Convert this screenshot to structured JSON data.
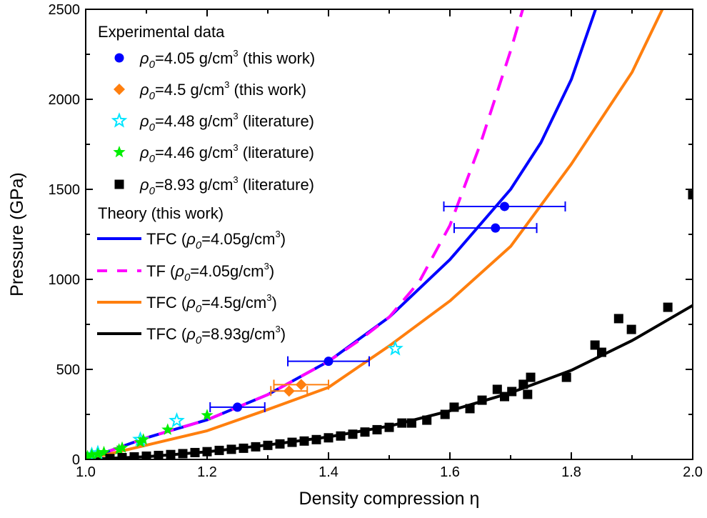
{
  "chart_data": {
    "type": "scatter",
    "title": "",
    "xlabel": "Density compression η",
    "ylabel": "Pressure (GPa)",
    "xlim": [
      1.0,
      2.0
    ],
    "ylim": [
      0,
      2500
    ],
    "xticks": [
      "1.0",
      "1.2",
      "1.4",
      "1.6",
      "1.8",
      "2.0"
    ],
    "yticks": [
      "0",
      "500",
      "1000",
      "1500",
      "2000",
      "2500"
    ],
    "grid": false,
    "legend_placement": "top-left",
    "legend": {
      "experimental_heading": "Experimental data",
      "theory_heading": "Theory (this work)"
    },
    "series": [
      {
        "name": "ρ0=4.05 g/cm3 (this work)",
        "label_parts": [
          "",
          "=4.05 g/cm",
          " (this work)"
        ],
        "marker": "circle",
        "color": "#0000ff",
        "points": [
          [
            1.25,
            290,
            0.045
          ],
          [
            1.4,
            545,
            0.067
          ],
          [
            1.675,
            1285,
            0.068
          ],
          [
            1.69,
            1405,
            0.1
          ]
        ]
      },
      {
        "name": "ρ0=4.5 g/cm3 (this work)",
        "label_parts": [
          "",
          "=4.5 g/cm",
          " (this work)"
        ],
        "marker": "diamond",
        "color": "#ff7f0e",
        "points": [
          [
            1.335,
            380,
            0.03
          ],
          [
            1.355,
            415,
            0.045
          ]
        ]
      },
      {
        "name": "ρ0=4.48 g/cm3 (literature)",
        "label_parts": [
          "",
          "=4.48 g/cm",
          " (literature)"
        ],
        "marker": "star-open",
        "color": "#00e5ff",
        "points": [
          [
            1.01,
            25
          ],
          [
            1.02,
            35
          ],
          [
            1.09,
            110
          ],
          [
            1.15,
            215
          ],
          [
            1.51,
            615
          ]
        ]
      },
      {
        "name": "ρ0=4.46 g/cm3 (literature)",
        "label_parts": [
          "",
          "=4.46 g/cm",
          " (literature)"
        ],
        "marker": "star",
        "color": "#00ee00",
        "points": [
          [
            1.003,
            18
          ],
          [
            1.01,
            25
          ],
          [
            1.02,
            30
          ],
          [
            1.03,
            40
          ],
          [
            1.055,
            55
          ],
          [
            1.06,
            65
          ],
          [
            1.09,
            95
          ],
          [
            1.095,
            110
          ],
          [
            1.135,
            165
          ],
          [
            1.2,
            245
          ]
        ]
      },
      {
        "name": "ρ0=8.93 g/cm3 (literature)",
        "label_parts": [
          "",
          "=8.93 g/cm",
          " (literature)"
        ],
        "marker": "square",
        "color": "#000000",
        "points": [
          [
            1.04,
            5
          ],
          [
            1.06,
            10
          ],
          [
            1.08,
            14
          ],
          [
            1.1,
            18
          ],
          [
            1.12,
            22
          ],
          [
            1.14,
            27
          ],
          [
            1.16,
            32
          ],
          [
            1.18,
            38
          ],
          [
            1.2,
            43
          ],
          [
            1.22,
            50
          ],
          [
            1.24,
            56
          ],
          [
            1.26,
            62
          ],
          [
            1.28,
            70
          ],
          [
            1.3,
            78
          ],
          [
            1.32,
            86
          ],
          [
            1.34,
            95
          ],
          [
            1.36,
            102
          ],
          [
            1.38,
            110
          ],
          [
            1.4,
            120
          ],
          [
            1.42,
            130
          ],
          [
            1.44,
            140
          ],
          [
            1.46,
            152
          ],
          [
            1.48,
            165
          ],
          [
            1.5,
            178
          ],
          [
            1.521,
            202
          ],
          [
            1.537,
            202
          ],
          [
            1.562,
            218
          ],
          [
            1.592,
            250
          ],
          [
            1.607,
            290
          ],
          [
            1.633,
            282
          ],
          [
            1.653,
            329
          ],
          [
            1.678,
            389
          ],
          [
            1.69,
            349
          ],
          [
            1.702,
            377
          ],
          [
            1.721,
            417
          ],
          [
            1.728,
            361
          ],
          [
            1.733,
            456
          ],
          [
            1.792,
            456
          ],
          [
            1.839,
            635
          ],
          [
            1.85,
            595
          ],
          [
            1.878,
            782
          ],
          [
            1.899,
            722
          ],
          [
            1.959,
            845
          ],
          [
            2.0,
            1470
          ]
        ]
      }
    ],
    "lines": [
      {
        "name": "TFC (ρ0=4.05g/cm3)",
        "label_parts": [
          "TFC (",
          "=4.05g/cm",
          ")"
        ],
        "color": "#0000ff",
        "dash": false,
        "points": [
          [
            1.0,
            0
          ],
          [
            1.1,
            120
          ],
          [
            1.2,
            220
          ],
          [
            1.3,
            360
          ],
          [
            1.4,
            545
          ],
          [
            1.5,
            790
          ],
          [
            1.6,
            1110
          ],
          [
            1.7,
            1500
          ],
          [
            1.75,
            1760
          ],
          [
            1.8,
            2110
          ],
          [
            1.84,
            2500
          ]
        ]
      },
      {
        "name": "TF (ρ0=4.05g/cm3)",
        "label_parts": [
          "TF (",
          "=4.05g/cm",
          ")"
        ],
        "color": "#ff00ff",
        "dash": true,
        "points": [
          [
            1.0,
            0
          ],
          [
            1.1,
            120
          ],
          [
            1.2,
            220
          ],
          [
            1.3,
            360
          ],
          [
            1.4,
            545
          ],
          [
            1.45,
            660
          ],
          [
            1.5,
            790
          ],
          [
            1.55,
            990
          ],
          [
            1.6,
            1300
          ],
          [
            1.65,
            1750
          ],
          [
            1.7,
            2270
          ],
          [
            1.72,
            2500
          ]
        ]
      },
      {
        "name": "TFC (ρ0=4.5g/cm3)",
        "label_parts": [
          "TFC (",
          "=4.5g/cm",
          ")"
        ],
        "color": "#ff7f0e",
        "dash": false,
        "points": [
          [
            1.0,
            0
          ],
          [
            1.1,
            79
          ],
          [
            1.2,
            159
          ],
          [
            1.3,
            277
          ],
          [
            1.4,
            400
          ],
          [
            1.5,
            630
          ],
          [
            1.6,
            880
          ],
          [
            1.7,
            1183
          ],
          [
            1.8,
            1640
          ],
          [
            1.9,
            2150
          ],
          [
            1.95,
            2500
          ]
        ]
      },
      {
        "name": "TFC (ρ0=8.93g/cm3)",
        "label_parts": [
          "TFC (",
          "=8.93g/cm",
          ")"
        ],
        "color": "#000000",
        "dash": false,
        "points": [
          [
            1.0,
            0
          ],
          [
            1.1,
            15
          ],
          [
            1.2,
            42
          ],
          [
            1.3,
            80
          ],
          [
            1.4,
            125
          ],
          [
            1.5,
            185
          ],
          [
            1.6,
            270
          ],
          [
            1.7,
            370
          ],
          [
            1.8,
            495
          ],
          [
            1.9,
            660
          ],
          [
            2.0,
            855
          ]
        ]
      }
    ]
  }
}
